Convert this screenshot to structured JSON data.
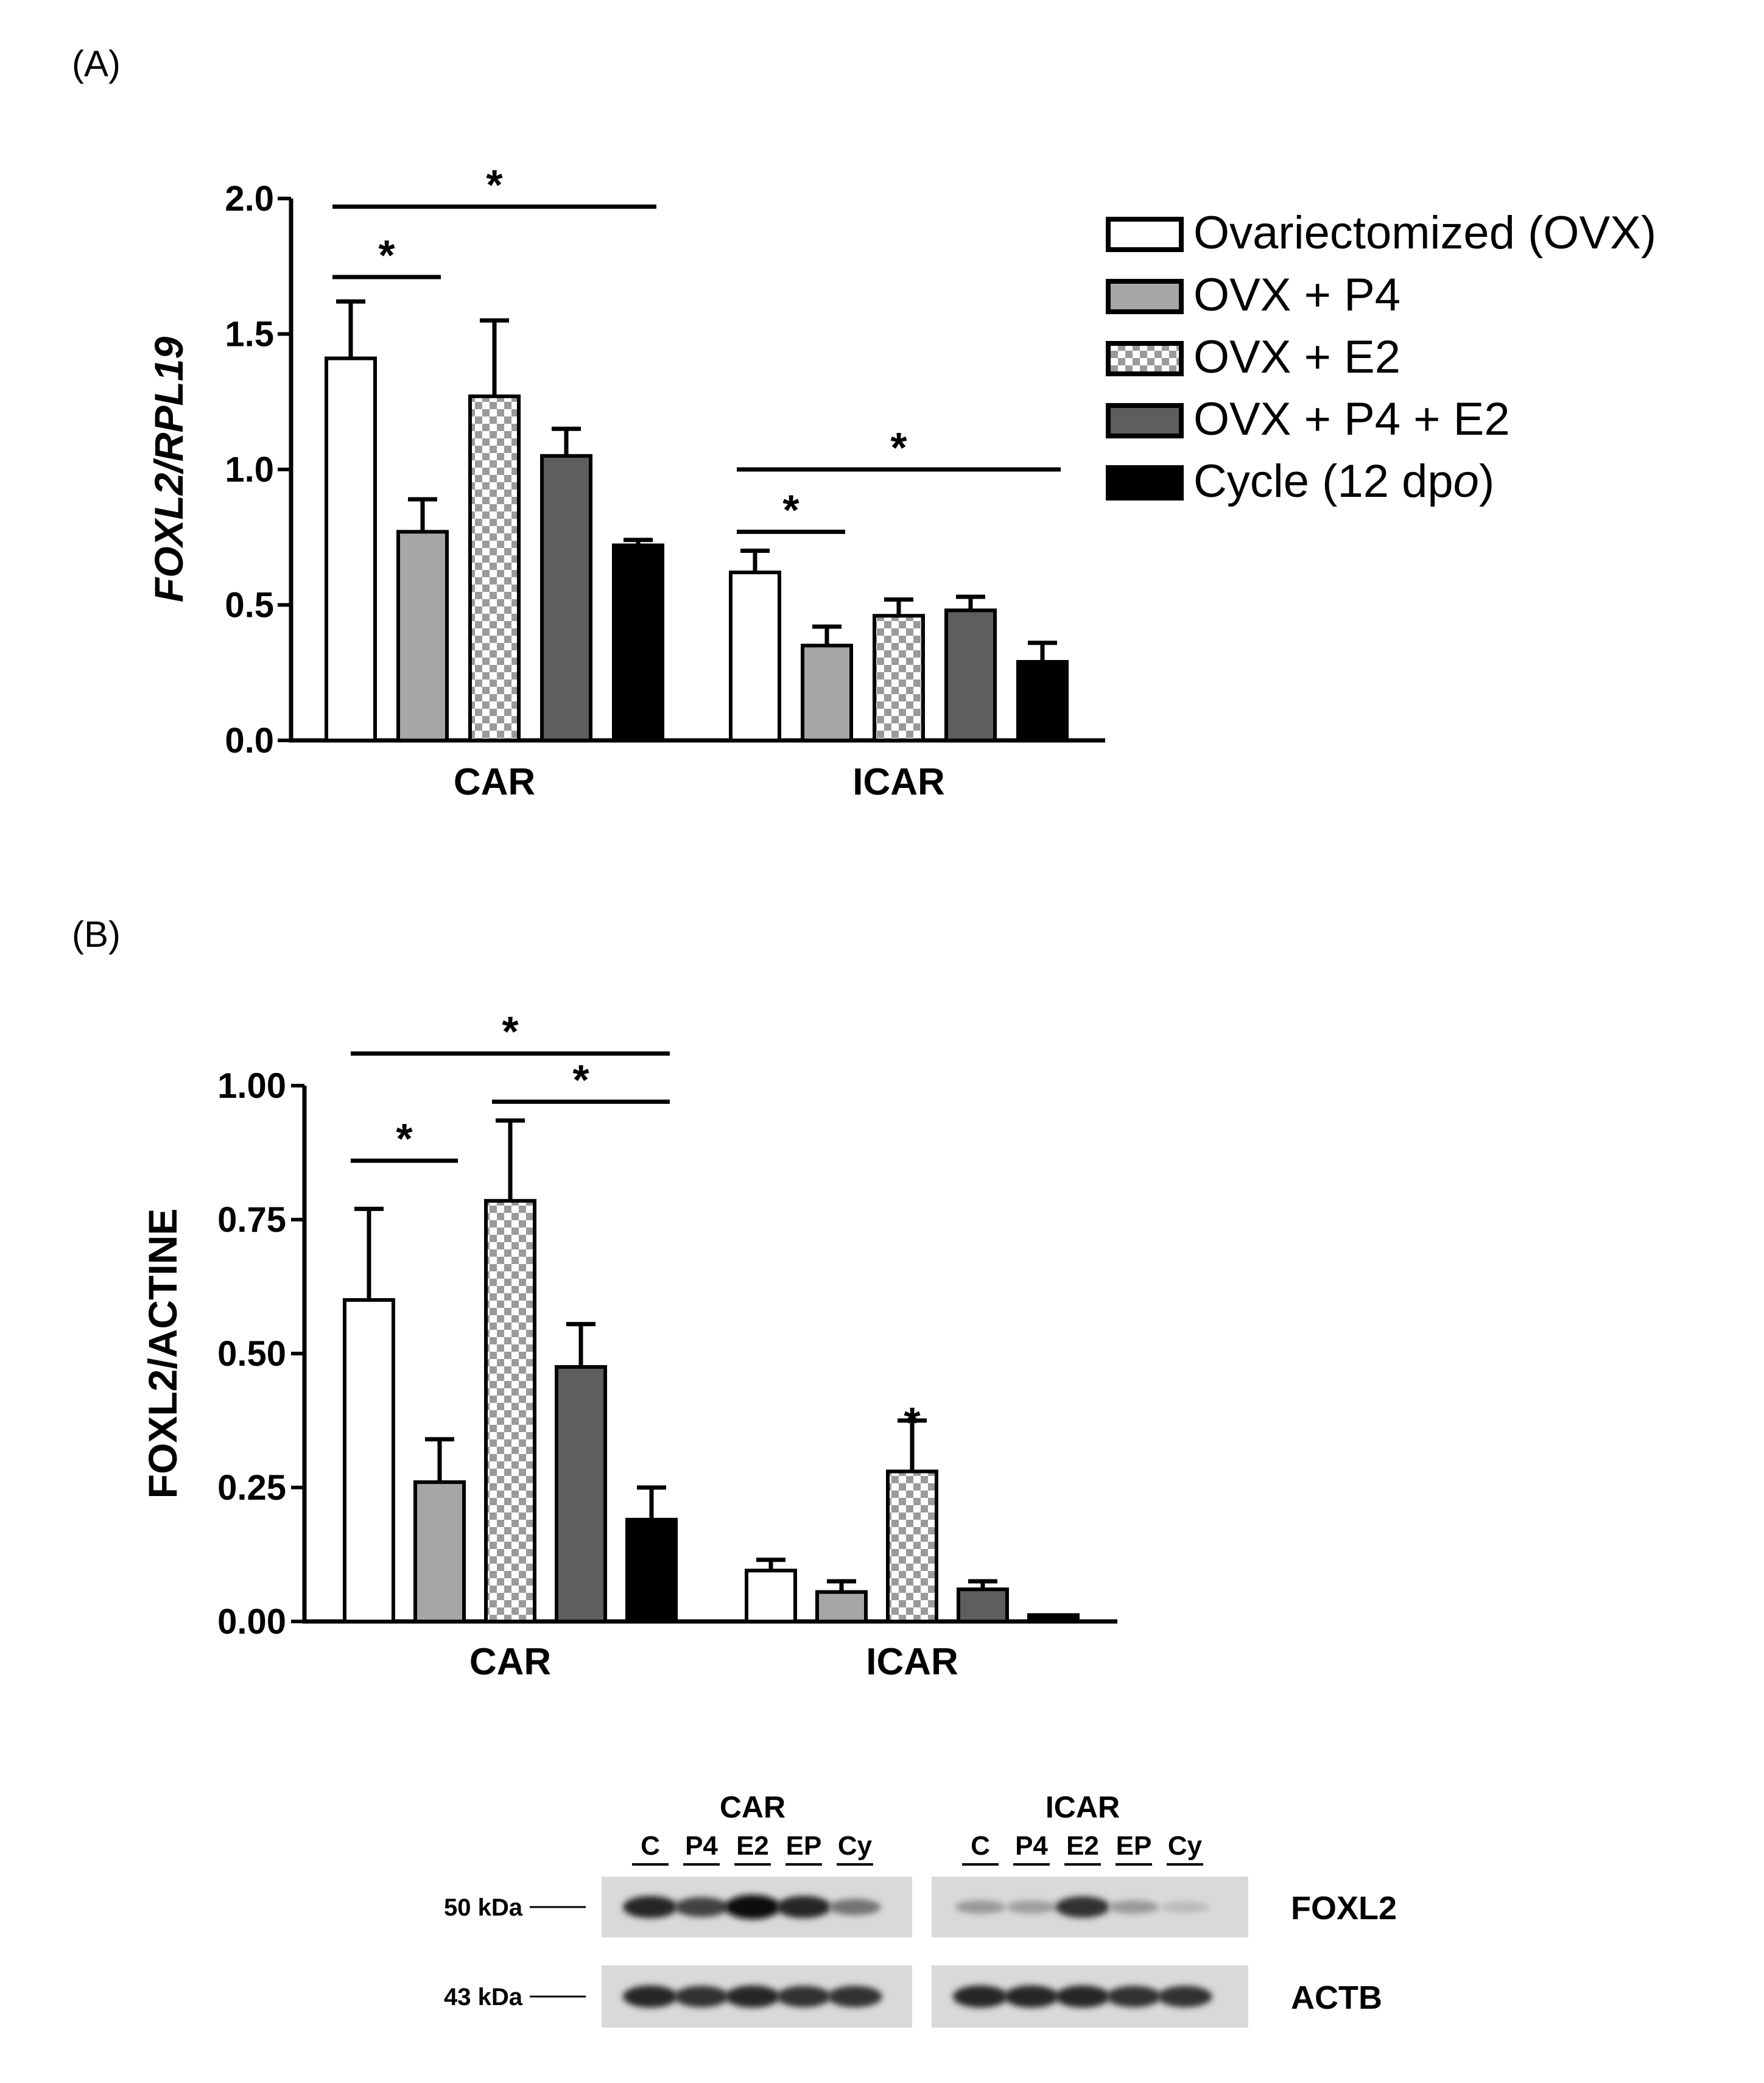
{
  "panels": {
    "a_label": "(A)",
    "b_label": "(B)"
  },
  "legend": {
    "entries": [
      {
        "name": "Ovariectomized (OVX)",
        "pattern": "white"
      },
      {
        "name": "OVX + P4",
        "pattern": "lightgray"
      },
      {
        "name": "OVX + E2",
        "pattern": "checker"
      },
      {
        "name": "OVX + P4 + E2",
        "pattern": "darkgray"
      },
      {
        "name": "Cycle (12 dpo)",
        "pattern": "black"
      }
    ],
    "cycle_prefix": "Cycle (12 dp",
    "cycle_italic": "o",
    "cycle_suffix": ")"
  },
  "chart_data": [
    {
      "type": "bar",
      "panel": "A",
      "title": "",
      "xlabel": "",
      "ylabel": "FOXL2/RPL19",
      "ylim": [
        0,
        2.0
      ],
      "yticks": [
        "0.0",
        "0.5",
        "1.0",
        "1.5",
        "2.0"
      ],
      "categories": [
        "CAR",
        "ICAR"
      ],
      "series": [
        {
          "name": "Ovariectomized (OVX)",
          "values": [
            1.41,
            0.62
          ],
          "errors": [
            0.21,
            0.08
          ]
        },
        {
          "name": "OVX + P4",
          "values": [
            0.77,
            0.35
          ],
          "errors": [
            0.12,
            0.07
          ]
        },
        {
          "name": "OVX + E2",
          "values": [
            1.27,
            0.46
          ],
          "errors": [
            0.28,
            0.06
          ]
        },
        {
          "name": "OVX + P4 + E2",
          "values": [
            1.05,
            0.48
          ],
          "errors": [
            0.1,
            0.05
          ]
        },
        {
          "name": "Cycle (12 dpo)",
          "values": [
            0.72,
            0.29
          ],
          "errors": [
            0.02,
            0.07
          ]
        }
      ],
      "annotations": [
        {
          "category": "CAR",
          "from": 0,
          "to": 4,
          "y": 1.97,
          "text": "*"
        },
        {
          "category": "CAR",
          "from": 0,
          "to": 1,
          "y": 1.71,
          "text": "*"
        },
        {
          "category": "ICAR",
          "from": 0,
          "to": 4,
          "y": 1.0,
          "text": "*"
        },
        {
          "category": "ICAR",
          "from": 0,
          "to": 1,
          "y": 0.77,
          "text": "*"
        }
      ]
    },
    {
      "type": "bar",
      "panel": "B",
      "title": "",
      "xlabel": "",
      "ylabel": "FOXL2/ACTINE",
      "ylim": [
        0,
        1.0
      ],
      "yticks": [
        "0.00",
        "0.25",
        "0.50",
        "0.75",
        "1.00"
      ],
      "categories": [
        "CAR",
        "ICAR"
      ],
      "series": [
        {
          "name": "Ovariectomized (OVX)",
          "values": [
            0.6,
            0.095
          ],
          "errors": [
            0.17,
            0.02
          ]
        },
        {
          "name": "OVX + P4",
          "values": [
            0.26,
            0.055
          ],
          "errors": [
            0.08,
            0.02
          ]
        },
        {
          "name": "OVX + E2",
          "values": [
            0.785,
            0.28
          ],
          "errors": [
            0.15,
            0.095
          ]
        },
        {
          "name": "OVX + P4 + E2",
          "values": [
            0.475,
            0.06
          ],
          "errors": [
            0.08,
            0.015
          ]
        },
        {
          "name": "Cycle (12 dpo)",
          "values": [
            0.19,
            0.012
          ],
          "errors": [
            0.06,
            0.0
          ]
        }
      ],
      "annotations": [
        {
          "category": "CAR",
          "from": 0,
          "to": 4,
          "y": 1.06,
          "text": "*"
        },
        {
          "category": "CAR",
          "from": 2,
          "to": 4,
          "y": 0.97,
          "text": "*"
        },
        {
          "category": "CAR",
          "from": 0,
          "to": 1,
          "y": 0.86,
          "text": "*"
        },
        {
          "category": "ICAR",
          "single": 2,
          "y": 0.39,
          "text": "*"
        }
      ]
    }
  ],
  "blot": {
    "groups": [
      "CAR",
      "ICAR"
    ],
    "lanes": [
      "C",
      "P4",
      "E2",
      "EP",
      "Cy"
    ],
    "markers": [
      "50 kDa",
      "43 kDa"
    ],
    "proteins": [
      "FOXL2",
      "ACTB"
    ],
    "foxl2_intensity": {
      "CAR": [
        0.85,
        0.7,
        1.0,
        0.85,
        0.45
      ],
      "ICAR": [
        0.25,
        0.22,
        0.8,
        0.25,
        0.08
      ]
    },
    "actb_intensity": {
      "CAR": [
        0.85,
        0.8,
        0.85,
        0.8,
        0.8
      ],
      "ICAR": [
        0.85,
        0.85,
        0.85,
        0.8,
        0.8
      ]
    }
  }
}
